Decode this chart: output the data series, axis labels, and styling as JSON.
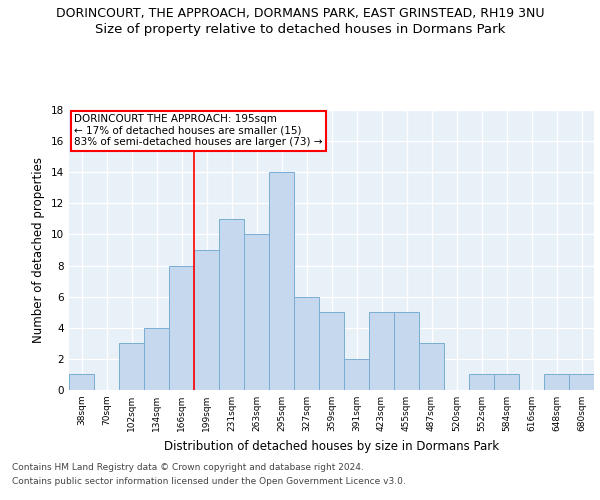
{
  "title": "DORINCOURT, THE APPROACH, DORMANS PARK, EAST GRINSTEAD, RH19 3NU",
  "subtitle": "Size of property relative to detached houses in Dormans Park",
  "xlabel": "Distribution of detached houses by size in Dormans Park",
  "ylabel": "Number of detached properties",
  "categories": [
    "38sqm",
    "70sqm",
    "102sqm",
    "134sqm",
    "166sqm",
    "199sqm",
    "231sqm",
    "263sqm",
    "295sqm",
    "327sqm",
    "359sqm",
    "391sqm",
    "423sqm",
    "455sqm",
    "487sqm",
    "520sqm",
    "552sqm",
    "584sqm",
    "616sqm",
    "648sqm",
    "680sqm"
  ],
  "values": [
    1,
    0,
    3,
    4,
    8,
    9,
    11,
    10,
    14,
    6,
    5,
    2,
    5,
    5,
    3,
    0,
    1,
    1,
    0,
    1,
    1
  ],
  "bar_color": "#c5d8ed",
  "bar_edge_color": "#7aadd4",
  "background_color": "#e8f0f8",
  "grid_color": "#ffffff",
  "vline_x_index": 5,
  "vline_color": "red",
  "annotation_text": "DORINCOURT THE APPROACH: 195sqm\n← 17% of detached houses are smaller (15)\n83% of semi-detached houses are larger (73) →",
  "annotation_box_color": "white",
  "annotation_box_edge": "red",
  "ylim": [
    0,
    18
  ],
  "yticks": [
    0,
    2,
    4,
    6,
    8,
    10,
    12,
    14,
    16,
    18
  ],
  "footer_line1": "Contains HM Land Registry data © Crown copyright and database right 2024.",
  "footer_line2": "Contains public sector information licensed under the Open Government Licence v3.0.",
  "title_fontsize": 9.0,
  "subtitle_fontsize": 9.5,
  "xlabel_fontsize": 8.5,
  "ylabel_fontsize": 8.5,
  "annotation_fontsize": 7.5,
  "footer_fontsize": 6.5
}
